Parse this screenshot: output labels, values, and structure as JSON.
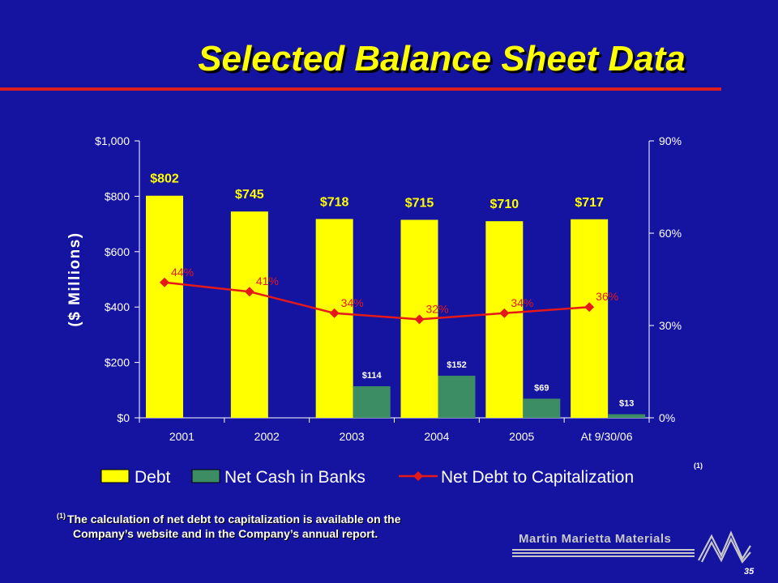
{
  "slide": {
    "title": "Selected Balance Sheet Data",
    "footnote_marker": "(1)",
    "footnote_line1": "The calculation of net debt to capitalization is available on the",
    "footnote_line2": "Company’s website and in the Company’s annual report.",
    "company": "Martin Marietta Materials",
    "page_number": "35"
  },
  "colors": {
    "background": "#1414a0",
    "title": "#ffff00",
    "rule": "#dc1e1e",
    "debt": "#ffff00",
    "net_cash": "#3c8c64",
    "ratio": "#e61919",
    "text": "#ffffff"
  },
  "chart_data": {
    "type": "bar",
    "categories": [
      "2001",
      "2002",
      "2003",
      "2004",
      "2005",
      "At 9/30/06"
    ],
    "ylabel": "($ Millions)",
    "ylim": [
      0,
      1000
    ],
    "y2lim": [
      0,
      0.9
    ],
    "y_ticks": [
      "$0",
      "$200",
      "$400",
      "$600",
      "$800",
      "$1,000"
    ],
    "y2_ticks": [
      "0%",
      "30%",
      "60%",
      "90%"
    ],
    "series": [
      {
        "name": "Debt",
        "type": "bar",
        "values": [
          802,
          745,
          718,
          715,
          710,
          717
        ],
        "labels": [
          "$802",
          "$745",
          "$718",
          "$715",
          "$710",
          "$717"
        ]
      },
      {
        "name": "Net Cash in Banks",
        "type": "bar",
        "values": [
          0,
          0,
          114,
          152,
          69,
          13
        ],
        "labels": [
          "",
          "",
          "$114",
          "$152",
          "$69",
          "$13"
        ]
      },
      {
        "name": "Net Debt to Capitalization",
        "type": "line",
        "axis": "right",
        "values": [
          0.44,
          0.41,
          0.34,
          0.32,
          0.34,
          0.36
        ],
        "labels": [
          "44%",
          "41%",
          "34%",
          "32%",
          "34%",
          "36%"
        ]
      }
    ],
    "legend_position": "bottom",
    "legend_note": "(1)"
  }
}
